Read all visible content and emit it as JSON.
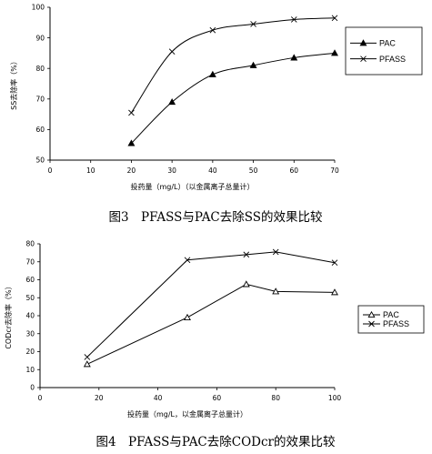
{
  "chart_data": [
    {
      "type": "line",
      "caption": "图3　PFASS与PAC去除SS的效果比较",
      "xlabel": "投药量（mg/L）（以金属离子总量计）",
      "ylabel": "SS去除率（%）",
      "xlim": [
        0,
        70
      ],
      "ylim": [
        50,
        100
      ],
      "xticks": [
        0,
        10,
        20,
        30,
        40,
        50,
        60,
        70
      ],
      "yticks": [
        50,
        60,
        70,
        80,
        90,
        100
      ],
      "grid": false,
      "legend_position": "right",
      "series": [
        {
          "name": "PAC",
          "marker": "triangle-filled",
          "x": [
            20,
            30,
            40,
            50,
            60,
            70
          ],
          "y": [
            55.5,
            69,
            78,
            81,
            83.5,
            85
          ]
        },
        {
          "name": "PFASS",
          "marker": "x",
          "x": [
            20,
            30,
            40,
            50,
            60,
            70
          ],
          "y": [
            65.5,
            85.5,
            92.5,
            94.5,
            96,
            96.5
          ]
        }
      ]
    },
    {
      "type": "line",
      "caption": "图4　PFASS与PAC去除CODcr的效果比较",
      "xlabel": "投药量（mg/L，以金属离子总量计）",
      "ylabel": "CODcr去除率（%）",
      "xlim": [
        0,
        100
      ],
      "ylim": [
        0,
        80
      ],
      "xticks": [
        0,
        20,
        40,
        60,
        80,
        100
      ],
      "yticks": [
        0,
        10,
        20,
        30,
        40,
        50,
        60,
        70,
        80
      ],
      "grid": false,
      "legend_position": "right",
      "series": [
        {
          "name": "PAC",
          "marker": "triangle-open",
          "x": [
            16,
            50,
            70,
            80,
            100
          ],
          "y": [
            13,
            39,
            57.5,
            53.5,
            53
          ]
        },
        {
          "name": "PFASS",
          "marker": "x",
          "x": [
            16,
            50,
            70,
            80,
            100
          ],
          "y": [
            17,
            71,
            74,
            75.5,
            69.5
          ]
        }
      ]
    }
  ]
}
